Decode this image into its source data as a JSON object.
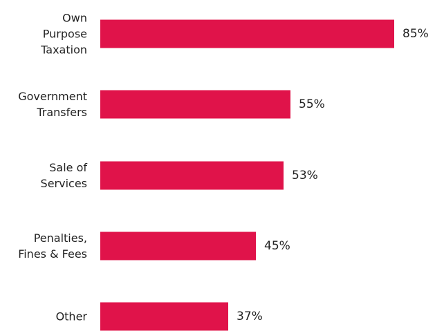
{
  "chart_data": {
    "type": "bar",
    "orientation": "horizontal",
    "categories": [
      "Own\nPurpose\nTaxation",
      "Government\nTransfers",
      "Sale of\nServices",
      "Penalties,\nFines & Fees",
      "Other"
    ],
    "values": [
      85,
      55,
      53,
      45,
      37
    ],
    "value_labels": [
      "85%",
      "55%",
      "53%",
      "45%",
      "37%"
    ],
    "color": "#e0134a"
  }
}
